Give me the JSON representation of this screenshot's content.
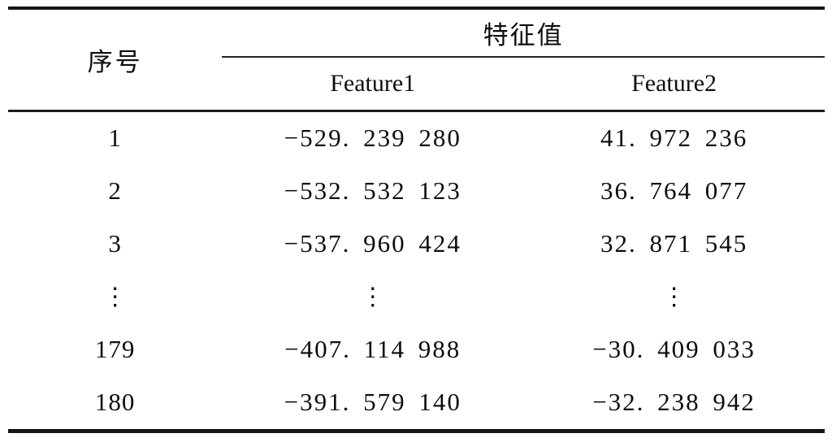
{
  "table": {
    "header": {
      "serial": "序号",
      "group": "特征值",
      "feature1": "Feature1",
      "feature2": "Feature2"
    },
    "rows": [
      {
        "id": "1",
        "f1": "−529. 239 280",
        "f2": "41. 972 236"
      },
      {
        "id": "2",
        "f1": "−532. 532 123",
        "f2": "36. 764 077"
      },
      {
        "id": "3",
        "f1": "−537. 960 424",
        "f2": "32. 871 545"
      },
      {
        "id": "⋮",
        "f1": "⋮",
        "f2": "⋮"
      },
      {
        "id": "179",
        "f1": "−407. 114 988",
        "f2": "−30. 409 033"
      },
      {
        "id": "180",
        "f1": "−391. 579 140",
        "f2": "−32. 238 942"
      }
    ],
    "colors": {
      "background": "#ffffff",
      "text": "#0d0d0d",
      "rule": "#161616"
    }
  }
}
